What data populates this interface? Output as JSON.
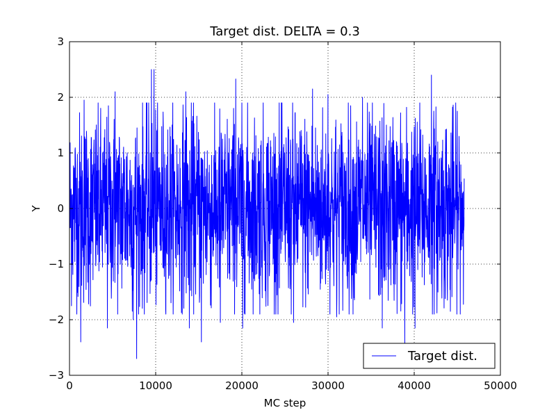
{
  "chart_data": {
    "type": "line",
    "title": "Target dist. DELTA = 0.3",
    "xlabel": "MC step",
    "ylabel": "Y",
    "xlim": [
      0,
      50000
    ],
    "ylim": [
      -3,
      3
    ],
    "xticks": [
      0,
      10000,
      20000,
      30000,
      40000,
      50000
    ],
    "xtick_labels": [
      "0",
      "10000",
      "20000",
      "30000",
      "40000",
      "50000"
    ],
    "yticks": [
      -3,
      -2,
      -1,
      0,
      1,
      2,
      3
    ],
    "ytick_labels": [
      "−3",
      "−2",
      "−1",
      "0",
      "1",
      "2",
      "3"
    ],
    "grid": true,
    "legend_position": "lower-right",
    "series": [
      {
        "name": "Target dist.",
        "color": "#0000ff",
        "x_range": [
          0,
          45800
        ],
        "n_points": 2000,
        "distribution": "approximately standard normal, mean 0",
        "highlights": [
          {
            "x": 9500,
            "y": 2.5
          },
          {
            "x": 9800,
            "y": 2.5
          },
          {
            "x": 19300,
            "y": 2.33
          },
          {
            "x": 28200,
            "y": 2.15
          },
          {
            "x": 42000,
            "y": 2.4
          },
          {
            "x": 7800,
            "y": -2.7
          },
          {
            "x": 38900,
            "y": -2.45
          },
          {
            "x": 1300,
            "y": -2.4
          },
          {
            "x": 15300,
            "y": -2.4
          },
          {
            "x": 4400,
            "y": -2.15
          },
          {
            "x": 36300,
            "y": -2.15
          },
          {
            "x": 40100,
            "y": -2.15
          },
          {
            "x": 13900,
            "y": -2.15
          },
          {
            "x": 20100,
            "y": -2.15
          },
          {
            "x": 26000,
            "y": -2.05
          },
          {
            "x": 7400,
            "y": -2.0
          },
          {
            "x": 17500,
            "y": -2.05
          },
          {
            "x": 31000,
            "y": -1.95
          },
          {
            "x": 44200,
            "y": -1.85
          },
          {
            "x": 5300,
            "y": 2.1
          },
          {
            "x": 13500,
            "y": 2.1
          },
          {
            "x": 1700,
            "y": 1.95
          },
          {
            "x": 30000,
            "y": 2.05
          },
          {
            "x": 34000,
            "y": 2.0
          },
          {
            "x": 45000,
            "y": 1.75
          }
        ]
      }
    ]
  }
}
